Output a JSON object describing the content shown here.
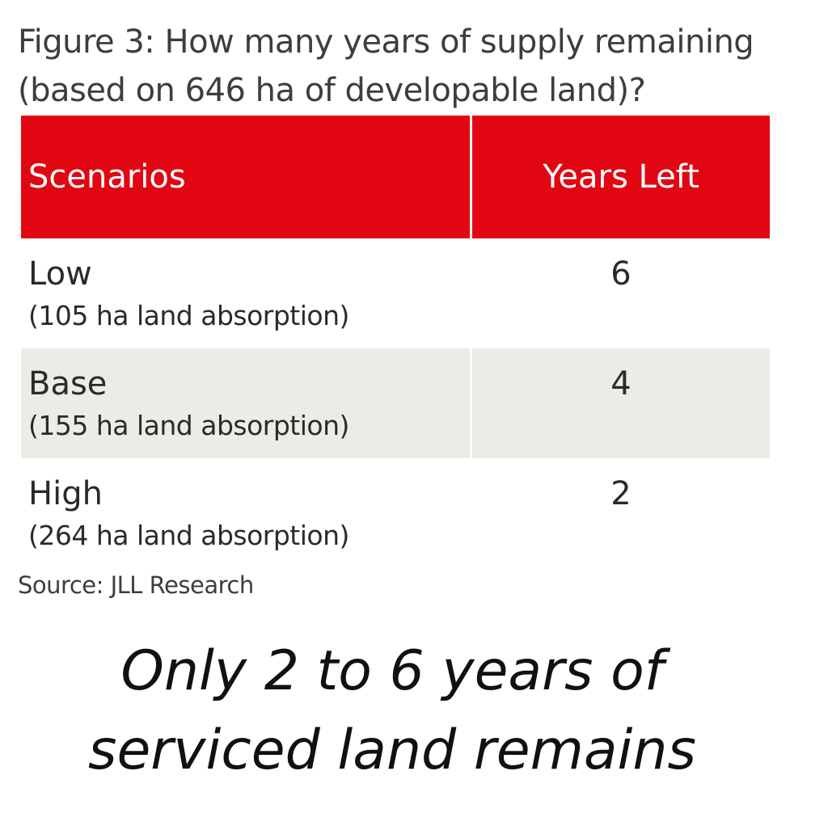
{
  "figure": {
    "title_line1": "Figure 3: How many years of supply remaining",
    "title_line2": "(based on 646 ha of developable land)?"
  },
  "table": {
    "headers": [
      "Scenarios",
      "Years Left"
    ],
    "rows": [
      {
        "scenario": "Low",
        "detail": "(105 ha land absorption)",
        "years_left": "6"
      },
      {
        "scenario": "Base",
        "detail": "(155 ha land absorption)",
        "years_left": "4"
      },
      {
        "scenario": "High",
        "detail": "(264 ha land absorption)",
        "years_left": "2"
      }
    ],
    "colors": {
      "header_bg": "#e20613",
      "header_text": "#ffffff",
      "alt_row_bg": "#ecebe6"
    }
  },
  "source": "Source: JLL Research",
  "takeaway": {
    "line1": "Only 2 to 6 years of",
    "line2": "serviced land remains"
  }
}
